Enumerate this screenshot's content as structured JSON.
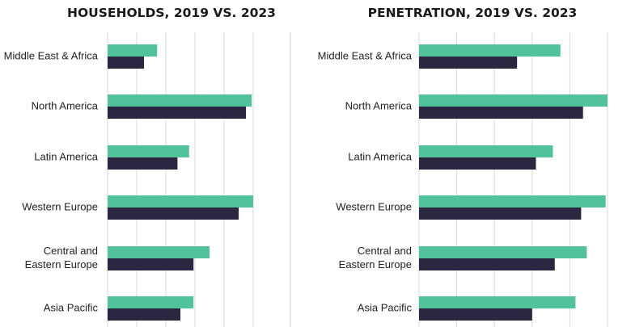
{
  "colors": {
    "series_2023": "#52c29a",
    "series_2019": "#2b2740",
    "grid": "#d9d9d9",
    "text": "#222222"
  },
  "chart_data": [
    {
      "type": "bar",
      "orientation": "horizontal",
      "title": "HOUSEHOLDS, 2019 VS. 2023",
      "categories": [
        "Middle East & Africa",
        "North America",
        "Latin America",
        "Western Europe",
        "Central and Eastern Europe",
        "Asia Pacific"
      ],
      "category_lines": [
        [
          "Middle East & Africa"
        ],
        [
          "North America"
        ],
        [
          "Latin America"
        ],
        [
          "Western Europe"
        ],
        [
          "Central and",
          "Eastern Europe"
        ],
        [
          "Asia Pacific"
        ]
      ],
      "xlim": [
        0,
        100
      ],
      "series": [
        {
          "values": [
            34,
            99,
            56,
            100,
            70,
            59
          ]
        },
        {
          "values": [
            25,
            95,
            48,
            90,
            59,
            50
          ]
        }
      ],
      "grid": true,
      "legend": "none"
    },
    {
      "type": "bar",
      "orientation": "horizontal",
      "title": "PENETRATION, 2019 VS. 2023",
      "categories": [
        "Middle East & Africa",
        "North America",
        "Latin America",
        "Western Europe",
        "Central and Eastern Europe",
        "Asia Pacific"
      ],
      "category_lines": [
        [
          "Middle East & Africa"
        ],
        [
          "North America"
        ],
        [
          "Latin America"
        ],
        [
          "Western Europe"
        ],
        [
          "Central and",
          "Eastern Europe"
        ],
        [
          "Asia Pacific"
        ]
      ],
      "xlim": [
        0,
        100
      ],
      "series": [
        {
          "values": [
            75,
            100,
            71,
            99,
            89,
            83
          ]
        },
        {
          "values": [
            52,
            87,
            62,
            86,
            72,
            60
          ]
        }
      ],
      "grid": true,
      "legend": "none"
    }
  ]
}
